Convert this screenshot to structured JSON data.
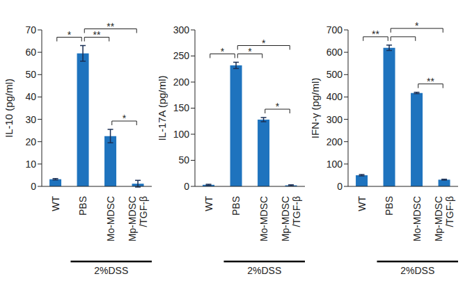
{
  "chart_data": [
    {
      "type": "bar",
      "ylabel": "IL-10 (pg/ml)",
      "categories": [
        "WT",
        "PBS",
        "Mo-MDSC",
        "Mp-MDSC/TGF-β"
      ],
      "values": [
        3.2,
        59.5,
        22.5,
        1.2
      ],
      "errors": [
        0.3,
        3.5,
        3,
        1.5
      ],
      "color": "#1e73be",
      "ylim": [
        0,
        70
      ],
      "yticks": [
        0,
        10,
        20,
        30,
        40,
        50,
        60,
        70
      ],
      "grid": false,
      "group": {
        "label": "2%DSS",
        "categories": [
          "PBS",
          "Mo-MDSC",
          "Mp-MDSC/TGF-β"
        ]
      },
      "significance": [
        {
          "from": "WT",
          "to": "PBS",
          "label": "*"
        },
        {
          "from": "PBS",
          "to": "Mo-MDSC",
          "label": "**"
        },
        {
          "from": "PBS",
          "to": "Mp-MDSC/TGF-β",
          "label": "**"
        },
        {
          "from": "Mo-MDSC",
          "to": "Mp-MDSC/TGF-β",
          "label": "*"
        }
      ]
    },
    {
      "type": "bar",
      "ylabel": "IL-17A (pg/ml)",
      "categories": [
        "WT",
        "PBS",
        "Mo-MDSC",
        "Mp-MDSC/TGF-β"
      ],
      "values": [
        3,
        232,
        128,
        2
      ],
      "errors": [
        1,
        6,
        4,
        1
      ],
      "color": "#1e73be",
      "ylim": [
        0,
        300
      ],
      "yticks": [
        0,
        50,
        100,
        150,
        200,
        250,
        300
      ],
      "grid": false,
      "group": {
        "label": "2%DSS",
        "categories": [
          "PBS",
          "Mo-MDSC",
          "Mp-MDSC/TGF-β"
        ]
      },
      "significance": [
        {
          "from": "WT",
          "to": "PBS",
          "label": "*"
        },
        {
          "from": "PBS",
          "to": "Mo-MDSC",
          "label": "*"
        },
        {
          "from": "PBS",
          "to": "Mp-MDSC/TGF-β",
          "label": "*"
        },
        {
          "from": "Mo-MDSC",
          "to": "Mp-MDSC/TGF-β",
          "label": "*"
        }
      ]
    },
    {
      "type": "bar",
      "ylabel": "IFN-γ (pg/ml)",
      "categories": [
        "WT",
        "PBS",
        "Mo-MDSC",
        "Mp-MDSC/TGF-β"
      ],
      "values": [
        50,
        620,
        418,
        30
      ],
      "errors": [
        3,
        12,
        3,
        2
      ],
      "color": "#1e73be",
      "ylim": [
        0,
        700
      ],
      "yticks": [
        0,
        100,
        200,
        300,
        400,
        500,
        600,
        700
      ],
      "grid": false,
      "group": {
        "label": "2%DSS",
        "categories": [
          "PBS",
          "Mo-MDSC",
          "Mp-MDSC/TGF-β"
        ]
      },
      "significance": [
        {
          "from": "WT",
          "to": "PBS",
          "label": "**"
        },
        {
          "from": "PBS",
          "to": "Mo-MDSC",
          "label": null
        },
        {
          "from": "PBS",
          "to": "Mp-MDSC/TGF-β",
          "label": "*"
        },
        {
          "from": "Mo-MDSC",
          "to": "Mp-MDSC/TGF-β",
          "label": "**"
        }
      ]
    }
  ]
}
